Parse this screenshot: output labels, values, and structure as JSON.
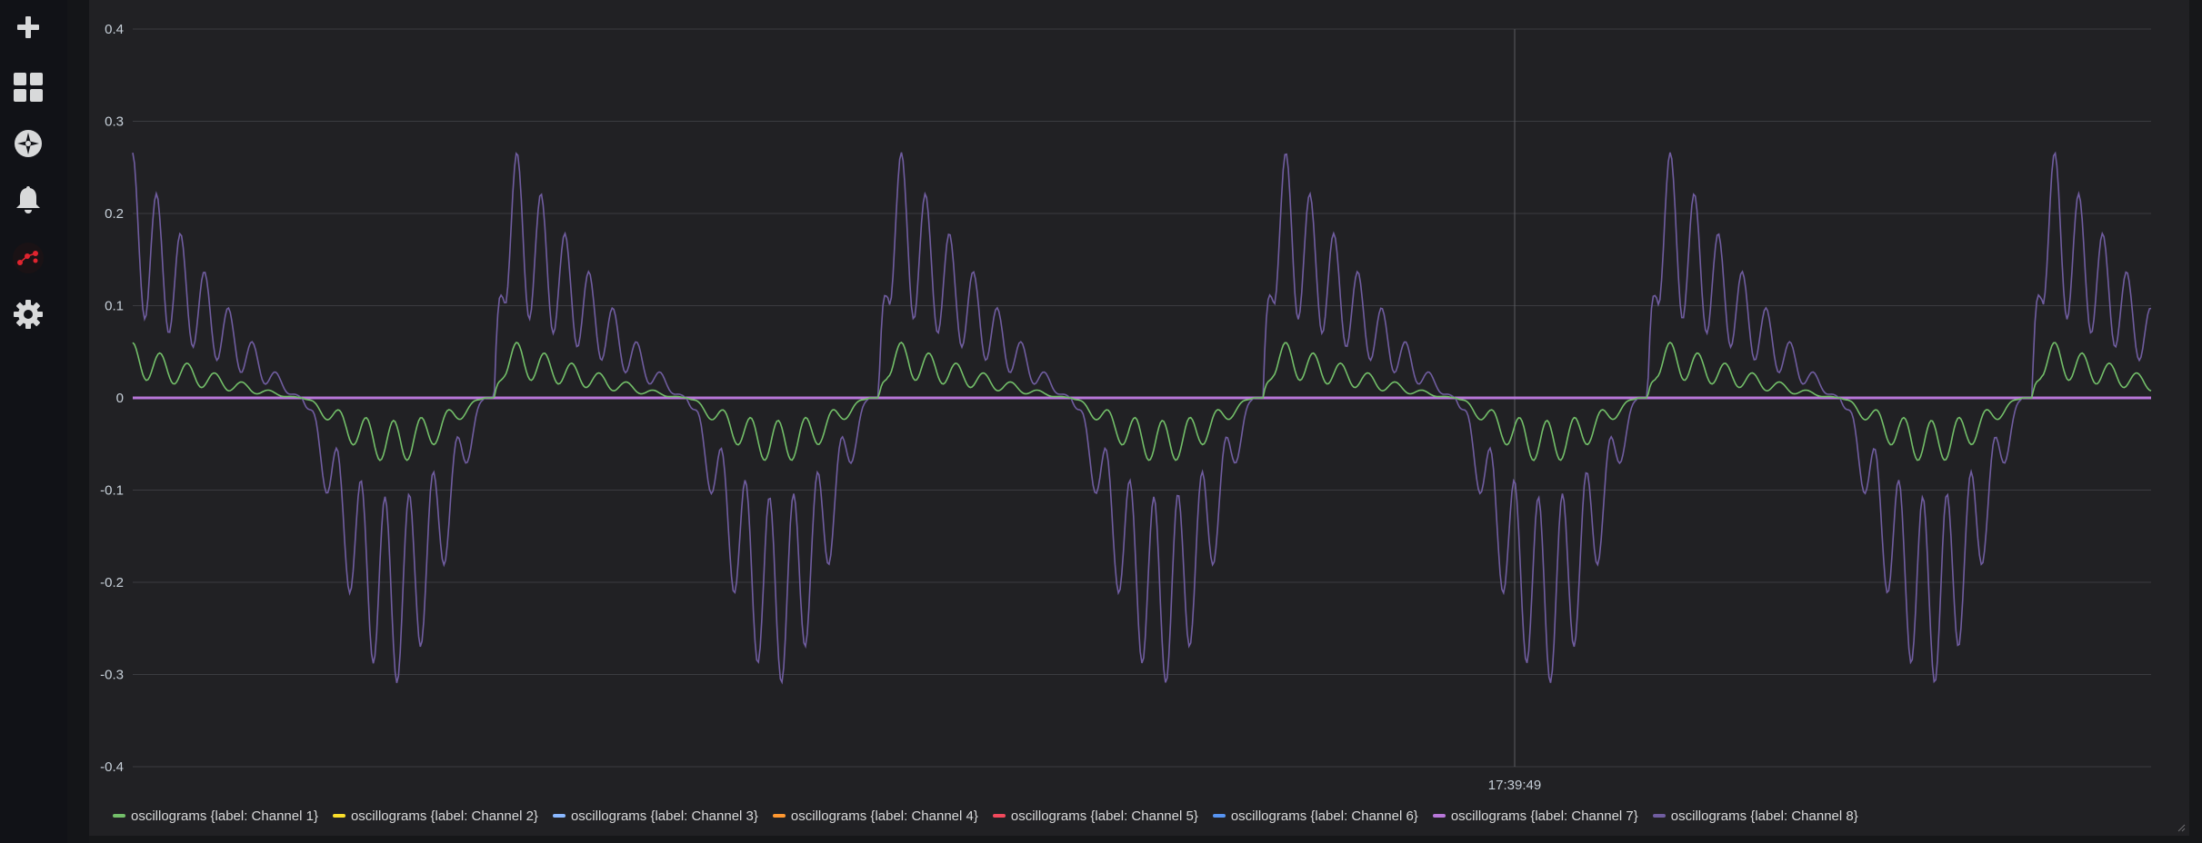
{
  "sidebar": {
    "items": [
      {
        "name": "create",
        "icon": "plus-icon"
      },
      {
        "name": "dashboards",
        "icon": "dashboards-grid-icon"
      },
      {
        "name": "explore",
        "icon": "compass-icon"
      },
      {
        "name": "alerting",
        "icon": "bell-icon"
      },
      {
        "name": "plugin-app",
        "icon": "plugin-dots-icon"
      },
      {
        "name": "configuration",
        "icon": "gear-icon"
      }
    ]
  },
  "colors": {
    "background": "#161719",
    "panel": "#212124",
    "grid": "#3b3c40",
    "channel1": "#73bf69",
    "channel2": "#fade2a",
    "channel3": "#8ab8ff",
    "channel4": "#ff9830",
    "channel5": "#f2495c",
    "channel6": "#5794f2",
    "channel7": "#b877d9",
    "channel8": "#705da0"
  },
  "chart_data": {
    "type": "line",
    "title": "",
    "xlabel": "",
    "ylabel": "",
    "ylim": [
      -0.4,
      0.4
    ],
    "yticks": [
      "0.4",
      "0.3",
      "0.2",
      "0.1",
      "0",
      "-0.1",
      "-0.2",
      "-0.3",
      "-0.4"
    ],
    "x_tick_labels": [
      "17:39:49"
    ],
    "crosshair_time": "17:39:49",
    "grid": true,
    "legend_position": "bottom",
    "cycles": 5.25,
    "samples": 1200,
    "series": [
      {
        "name": "oscillograms {label: Channel 1}",
        "color": "#73bf69",
        "amplitude": 0.07,
        "description_values": {
          "peak": 0.07,
          "trough": -0.07
        }
      },
      {
        "name": "oscillograms {label: Channel 2}",
        "color": "#fade2a",
        "amplitude": 0
      },
      {
        "name": "oscillograms {label: Channel 3}",
        "color": "#8ab8ff",
        "amplitude": 0
      },
      {
        "name": "oscillograms {label: Channel 4}",
        "color": "#ff9830",
        "amplitude": 0
      },
      {
        "name": "oscillograms {label: Channel 5}",
        "color": "#f2495c",
        "amplitude": 0
      },
      {
        "name": "oscillograms {label: Channel 6}",
        "color": "#5794f2",
        "amplitude": 0
      },
      {
        "name": "oscillograms {label: Channel 7}",
        "color": "#b877d9",
        "amplitude": 0
      },
      {
        "name": "oscillograms {label: Channel 8}",
        "color": "#705da0",
        "amplitude": 0.31,
        "description_values": {
          "peak": 0.31,
          "trough": -0.31
        }
      }
    ]
  }
}
